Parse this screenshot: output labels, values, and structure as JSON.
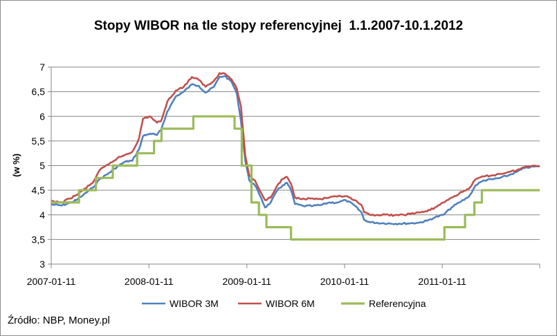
{
  "chart_data": {
    "type": "line",
    "title": "Stopy WIBOR na tle stopy referencyjnej  1.1.2007-10.1.2012",
    "ylabel": "(w %)",
    "xlabel": "",
    "ylim": [
      3,
      7
    ],
    "y_ticks": [
      "3",
      "3,5",
      "4",
      "4,5",
      "5",
      "5,5",
      "6",
      "6,5",
      "7"
    ],
    "x_ticks": [
      "2007-01-11",
      "2008-01-11",
      "2009-01-11",
      "2010-01-11",
      "2011-01-11"
    ],
    "x_tick_values": [
      "2007-01-11",
      "2008-01-11",
      "2009-01-11",
      "2010-01-11",
      "2011-01-11"
    ],
    "xlim": [
      "2007-01-11",
      "2012-01-10"
    ],
    "grid": "horizontal",
    "legend_position": "bottom",
    "series": [
      {
        "name": "WIBOR 3M",
        "color": "#4f81bd",
        "points": [
          [
            "2007-01-11",
            4.21
          ],
          [
            "2007-02-20",
            4.19
          ],
          [
            "2007-03-20",
            4.24
          ],
          [
            "2007-04-15",
            4.3
          ],
          [
            "2007-05-10",
            4.4
          ],
          [
            "2007-06-15",
            4.55
          ],
          [
            "2007-07-10",
            4.72
          ],
          [
            "2007-08-15",
            4.85
          ],
          [
            "2007-09-15",
            4.98
          ],
          [
            "2007-10-15",
            5.08
          ],
          [
            "2007-11-10",
            5.1
          ],
          [
            "2007-12-05",
            5.33
          ],
          [
            "2007-12-20",
            5.6
          ],
          [
            "2008-01-15",
            5.65
          ],
          [
            "2008-02-10",
            5.62
          ],
          [
            "2008-02-25",
            5.72
          ],
          [
            "2008-03-20",
            6.1
          ],
          [
            "2008-04-20",
            6.4
          ],
          [
            "2008-05-20",
            6.5
          ],
          [
            "2008-06-20",
            6.65
          ],
          [
            "2008-07-15",
            6.62
          ],
          [
            "2008-08-10",
            6.48
          ],
          [
            "2008-09-10",
            6.6
          ],
          [
            "2008-10-01",
            6.8
          ],
          [
            "2008-10-20",
            6.82
          ],
          [
            "2008-11-15",
            6.7
          ],
          [
            "2008-12-05",
            6.45
          ],
          [
            "2008-12-20",
            5.9
          ],
          [
            "2009-01-05",
            5.1
          ],
          [
            "2009-01-20",
            4.7
          ],
          [
            "2009-02-10",
            4.6
          ],
          [
            "2009-03-05",
            4.35
          ],
          [
            "2009-03-20",
            4.15
          ],
          [
            "2009-04-10",
            4.25
          ],
          [
            "2009-05-05",
            4.5
          ],
          [
            "2009-05-25",
            4.6
          ],
          [
            "2009-06-10",
            4.65
          ],
          [
            "2009-06-25",
            4.5
          ],
          [
            "2009-07-10",
            4.22
          ],
          [
            "2009-08-10",
            4.18
          ],
          [
            "2009-09-15",
            4.18
          ],
          [
            "2009-10-15",
            4.2
          ],
          [
            "2009-11-15",
            4.25
          ],
          [
            "2009-12-15",
            4.25
          ],
          [
            "2010-01-15",
            4.3
          ],
          [
            "2010-02-15",
            4.2
          ],
          [
            "2010-03-15",
            4.05
          ],
          [
            "2010-03-25",
            3.9
          ],
          [
            "2010-04-15",
            3.85
          ],
          [
            "2010-06-01",
            3.83
          ],
          [
            "2010-08-01",
            3.82
          ],
          [
            "2010-09-15",
            3.83
          ],
          [
            "2010-10-15",
            3.84
          ],
          [
            "2010-11-15",
            3.88
          ],
          [
            "2010-12-15",
            3.95
          ],
          [
            "2011-01-15",
            4.0
          ],
          [
            "2011-02-15",
            4.15
          ],
          [
            "2011-03-15",
            4.25
          ],
          [
            "2011-04-15",
            4.35
          ],
          [
            "2011-05-01",
            4.45
          ],
          [
            "2011-05-15",
            4.6
          ],
          [
            "2011-06-15",
            4.7
          ],
          [
            "2011-07-15",
            4.72
          ],
          [
            "2011-08-15",
            4.75
          ],
          [
            "2011-09-15",
            4.8
          ],
          [
            "2011-10-15",
            4.87
          ],
          [
            "2011-11-15",
            4.95
          ],
          [
            "2011-12-15",
            4.98
          ],
          [
            "2012-01-10",
            4.98
          ]
        ]
      },
      {
        "name": "WIBOR 6M",
        "color": "#c0504d",
        "points": [
          [
            "2007-01-11",
            4.27
          ],
          [
            "2007-02-20",
            4.25
          ],
          [
            "2007-03-20",
            4.33
          ],
          [
            "2007-04-15",
            4.4
          ],
          [
            "2007-05-10",
            4.5
          ],
          [
            "2007-06-15",
            4.65
          ],
          [
            "2007-07-10",
            4.9
          ],
          [
            "2007-08-15",
            5.03
          ],
          [
            "2007-09-15",
            5.15
          ],
          [
            "2007-10-15",
            5.22
          ],
          [
            "2007-11-10",
            5.28
          ],
          [
            "2007-12-05",
            5.55
          ],
          [
            "2007-12-20",
            5.95
          ],
          [
            "2008-01-15",
            6.0
          ],
          [
            "2008-02-10",
            5.87
          ],
          [
            "2008-02-25",
            5.9
          ],
          [
            "2008-03-20",
            6.3
          ],
          [
            "2008-04-20",
            6.52
          ],
          [
            "2008-05-20",
            6.6
          ],
          [
            "2008-06-20",
            6.8
          ],
          [
            "2008-07-15",
            6.74
          ],
          [
            "2008-08-10",
            6.6
          ],
          [
            "2008-09-10",
            6.72
          ],
          [
            "2008-10-01",
            6.88
          ],
          [
            "2008-10-20",
            6.87
          ],
          [
            "2008-11-15",
            6.75
          ],
          [
            "2008-12-05",
            6.55
          ],
          [
            "2008-12-20",
            6.2
          ],
          [
            "2009-01-05",
            5.2
          ],
          [
            "2009-01-20",
            4.8
          ],
          [
            "2009-02-10",
            4.7
          ],
          [
            "2009-03-05",
            4.45
          ],
          [
            "2009-03-20",
            4.3
          ],
          [
            "2009-04-10",
            4.35
          ],
          [
            "2009-05-05",
            4.6
          ],
          [
            "2009-05-25",
            4.73
          ],
          [
            "2009-06-10",
            4.77
          ],
          [
            "2009-06-25",
            4.63
          ],
          [
            "2009-07-10",
            4.35
          ],
          [
            "2009-08-10",
            4.33
          ],
          [
            "2009-09-15",
            4.33
          ],
          [
            "2009-10-15",
            4.32
          ],
          [
            "2009-11-15",
            4.35
          ],
          [
            "2009-12-15",
            4.37
          ],
          [
            "2010-01-15",
            4.38
          ],
          [
            "2010-02-15",
            4.3
          ],
          [
            "2010-03-15",
            4.2
          ],
          [
            "2010-03-25",
            4.05
          ],
          [
            "2010-04-15",
            4.0
          ],
          [
            "2010-06-01",
            4.0
          ],
          [
            "2010-08-01",
            3.99
          ],
          [
            "2010-09-15",
            4.02
          ],
          [
            "2010-10-15",
            4.05
          ],
          [
            "2010-11-15",
            4.07
          ],
          [
            "2010-12-15",
            4.15
          ],
          [
            "2011-01-15",
            4.25
          ],
          [
            "2011-02-15",
            4.35
          ],
          [
            "2011-03-15",
            4.43
          ],
          [
            "2011-04-15",
            4.52
          ],
          [
            "2011-05-01",
            4.6
          ],
          [
            "2011-05-15",
            4.72
          ],
          [
            "2011-06-15",
            4.78
          ],
          [
            "2011-07-15",
            4.8
          ],
          [
            "2011-08-15",
            4.83
          ],
          [
            "2011-09-15",
            4.87
          ],
          [
            "2011-10-15",
            4.9
          ],
          [
            "2011-11-15",
            4.97
          ],
          [
            "2011-12-15",
            5.0
          ],
          [
            "2012-01-10",
            5.0
          ]
        ]
      },
      {
        "name": "Referencyjna",
        "color": "#9bbb59",
        "step": true,
        "points": [
          [
            "2007-01-11",
            4.25
          ],
          [
            "2007-04-25",
            4.5
          ],
          [
            "2007-06-27",
            4.75
          ],
          [
            "2007-08-29",
            5.0
          ],
          [
            "2007-11-28",
            5.25
          ],
          [
            "2008-01-30",
            5.5
          ],
          [
            "2008-02-27",
            5.75
          ],
          [
            "2008-06-25",
            6.0
          ],
          [
            "2008-11-26",
            5.75
          ],
          [
            "2008-12-23",
            5.0
          ],
          [
            "2009-01-28",
            4.25
          ],
          [
            "2009-02-25",
            4.0
          ],
          [
            "2009-03-25",
            3.75
          ],
          [
            "2009-06-25",
            3.5
          ],
          [
            "2011-01-19",
            3.75
          ],
          [
            "2011-04-06",
            4.0
          ],
          [
            "2011-05-11",
            4.25
          ],
          [
            "2011-06-08",
            4.5
          ],
          [
            "2012-01-10",
            4.5
          ]
        ]
      }
    ]
  },
  "footer": {
    "source": "Źródło: NBP, Money.pl"
  }
}
